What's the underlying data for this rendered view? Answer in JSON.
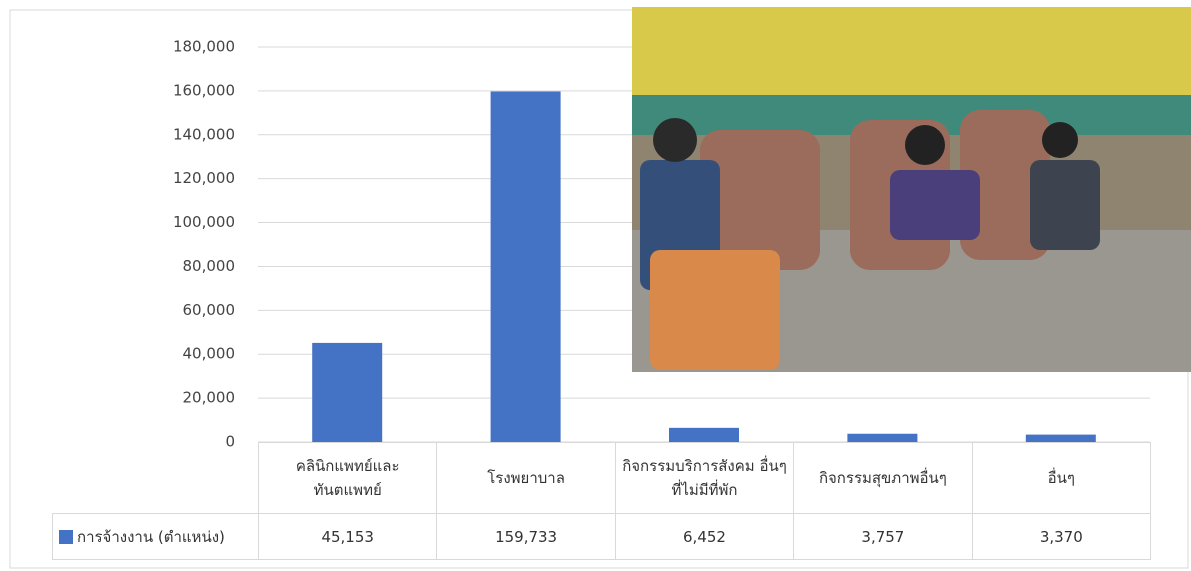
{
  "chart_data": {
    "type": "bar",
    "categories": [
      "คลินิกแพทย์และ ทันตแพทย์",
      "โรงพยาบาล",
      "กิจกรรมบริการสังคม อื่นๆ ที่ไม่มีที่พัก",
      "กิจกรรมสุขภาพอื่นๆ",
      "อื่นๆ"
    ],
    "series": [
      {
        "name": "การจ้างงาน (ตำแหน่ง)",
        "color": "#4472c4",
        "values": [
          45153,
          159733,
          6452,
          3757,
          3370
        ],
        "value_labels": [
          "45,153",
          "159,733",
          "6,452",
          "3,757",
          "3,370"
        ]
      }
    ],
    "ylim": [
      0,
      180000
    ],
    "yticks": [
      0,
      {
        "value": 20000,
        "label": "20,000"
      },
      {
        "value": 40000,
        "label": "40,000"
      },
      {
        "value": 60000,
        "label": "60,000"
      },
      {
        "value": 80000,
        "label": "80,000"
      },
      {
        "value": 100000,
        "label": "100,000"
      },
      {
        "value": 120000,
        "label": "120,000"
      },
      {
        "value": 140000,
        "label": "140,000"
      },
      {
        "value": 160000,
        "label": "160,000"
      },
      {
        "value": 180000,
        "label": "180,000"
      }
    ],
    "grid": true
  }
}
